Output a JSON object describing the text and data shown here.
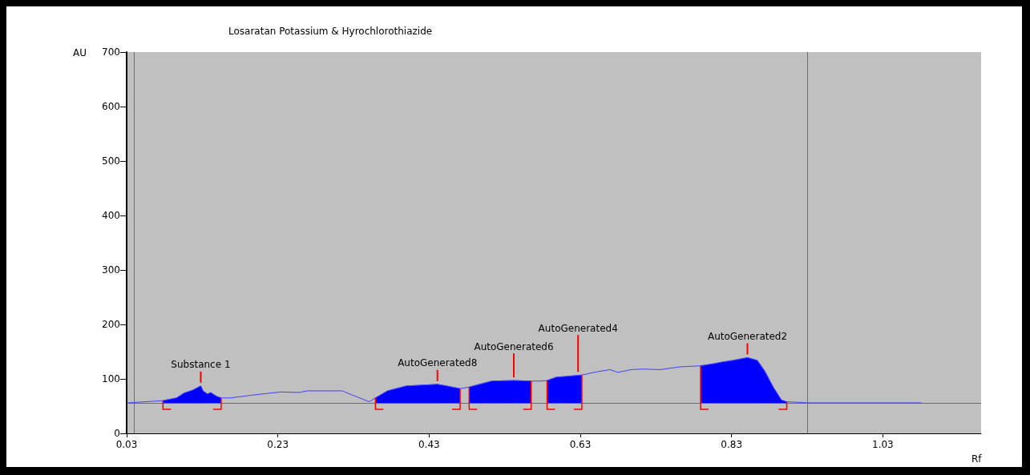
{
  "chart_data": {
    "type": "line",
    "title": "Losaratan Potassium & Hyrochlorothiazide",
    "xlabel": "Rf",
    "ylabel": "AU",
    "xlim": [
      0.03,
      1.16
    ],
    "xticks": [
      0.03,
      0.23,
      0.43,
      0.63,
      0.83,
      1.03
    ],
    "ylim": [
      0,
      700
    ],
    "yticks": [
      0,
      100,
      200,
      300,
      400,
      500,
      600,
      700
    ],
    "grid": false,
    "marker": "none",
    "line_style": "solid",
    "series": [
      {
        "type": "line",
        "color": "#4040ff",
        "x": [
          0.032,
          0.078,
          0.096,
          0.106,
          0.117,
          0.128,
          0.131,
          0.137,
          0.141,
          0.149,
          0.155,
          0.167,
          0.195,
          0.234,
          0.258,
          0.269,
          0.315,
          0.329,
          0.351,
          0.359,
          0.375,
          0.4,
          0.441,
          0.453,
          0.471,
          0.483,
          0.513,
          0.542,
          0.565,
          0.577,
          0.586,
          0.598,
          0.632,
          0.648,
          0.669,
          0.68,
          0.697,
          0.712,
          0.736,
          0.761,
          0.789,
          0.807,
          0.818,
          0.832,
          0.851,
          0.864,
          0.874,
          0.885,
          0.896,
          0.903,
          0.931,
          1.081
        ],
        "values": [
          56,
          60,
          65,
          74,
          79,
          87,
          78,
          72,
          75,
          68,
          65,
          65,
          70,
          76,
          75,
          78,
          78,
          70,
          58,
          65,
          78,
          87,
          90,
          87,
          82,
          85,
          96,
          97,
          96,
          96,
          97,
          103,
          107,
          112,
          117,
          112,
          117,
          118,
          117,
          122,
          124,
          128,
          131,
          134,
          139,
          134,
          114,
          85,
          61,
          58,
          56,
          56
        ]
      },
      {
        "type": "area",
        "color": "#0000ff",
        "x": [
          0.078,
          0.096,
          0.106,
          0.117,
          0.128,
          0.131,
          0.137,
          0.141,
          0.149,
          0.155
        ],
        "values": [
          60,
          65,
          74,
          79,
          87,
          78,
          72,
          75,
          68,
          65
        ]
      },
      {
        "type": "area",
        "color": "#0000ff",
        "x": [
          0.359,
          0.375,
          0.4,
          0.441,
          0.453,
          0.471
        ],
        "values": [
          65,
          78,
          87,
          90,
          87,
          82
        ]
      },
      {
        "type": "area",
        "color": "#0000ff",
        "x": [
          0.483,
          0.513,
          0.542,
          0.565
        ],
        "values": [
          85,
          96,
          97,
          96
        ]
      },
      {
        "type": "area",
        "color": "#0000ff",
        "x": [
          0.586,
          0.598,
          0.632
        ],
        "values": [
          97,
          103,
          107
        ]
      },
      {
        "type": "area",
        "color": "#0000ff",
        "x": [
          0.789,
          0.807,
          0.818,
          0.832,
          0.851,
          0.864,
          0.874,
          0.885,
          0.896,
          0.903
        ],
        "values": [
          124,
          128,
          131,
          134,
          139,
          134,
          114,
          85,
          61,
          58
        ]
      }
    ],
    "ref_lines": [
      {
        "axis": "y",
        "value": 56,
        "color": "#408080"
      },
      {
        "axis": "x",
        "value": 0.038,
        "color": "#408080"
      },
      {
        "axis": "x",
        "value": 0.931,
        "color": "#408080"
      }
    ],
    "annotations": [
      {
        "text": "Substance 1",
        "x": 0.128,
        "y": 87
      },
      {
        "text": "AutoGenerated8",
        "x": 0.441,
        "y": 90
      },
      {
        "text": "AutoGenerated6",
        "x": 0.542,
        "y": 97
      },
      {
        "text": "AutoGenerated4",
        "x": 0.627,
        "y": 107
      },
      {
        "text": "AutoGenerated2",
        "x": 0.851,
        "y": 139
      }
    ]
  }
}
